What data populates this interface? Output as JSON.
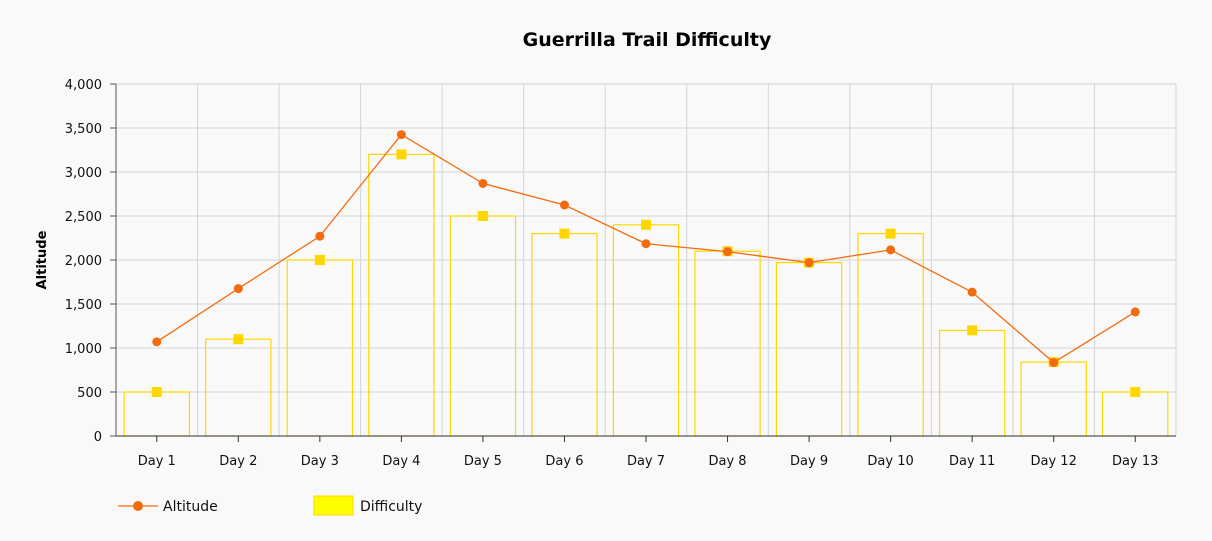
{
  "chart_data": {
    "type": "bar+line",
    "title": "Guerrilla Trail Difficulty",
    "ylabel": "Altitude",
    "xlabel": "",
    "categories": [
      "Day 1",
      "Day 2",
      "Day 3",
      "Day 4",
      "Day 5",
      "Day 6",
      "Day 7",
      "Day 8",
      "Day 9",
      "Day 10",
      "Day 11",
      "Day 12",
      "Day 13"
    ],
    "ylim": [
      0,
      4000
    ],
    "yticks": [
      0,
      500,
      1000,
      1500,
      2000,
      2500,
      3000,
      3500,
      4000
    ],
    "ytick_labels": [
      "0",
      "500",
      "1,000",
      "1,500",
      "2,000",
      "2,500",
      "3,000",
      "3,500",
      "4,000"
    ],
    "grid": true,
    "legend_position": "bottom-left",
    "series": [
      {
        "name": "Altitude",
        "kind": "line",
        "color": "#f26c0f",
        "marker": "circle",
        "values": [
          1070,
          1675,
          2270,
          3425,
          2870,
          2625,
          2185,
          2095,
          1970,
          2115,
          1635,
          835,
          1410
        ]
      },
      {
        "name": "Difficulty",
        "kind": "bar",
        "color": "#ffd700",
        "legend_color": "#ffff00",
        "marker": "square",
        "values": [
          500,
          1100,
          2000,
          3200,
          2500,
          2300,
          2400,
          2100,
          1970,
          2300,
          1200,
          840,
          500
        ]
      }
    ]
  }
}
